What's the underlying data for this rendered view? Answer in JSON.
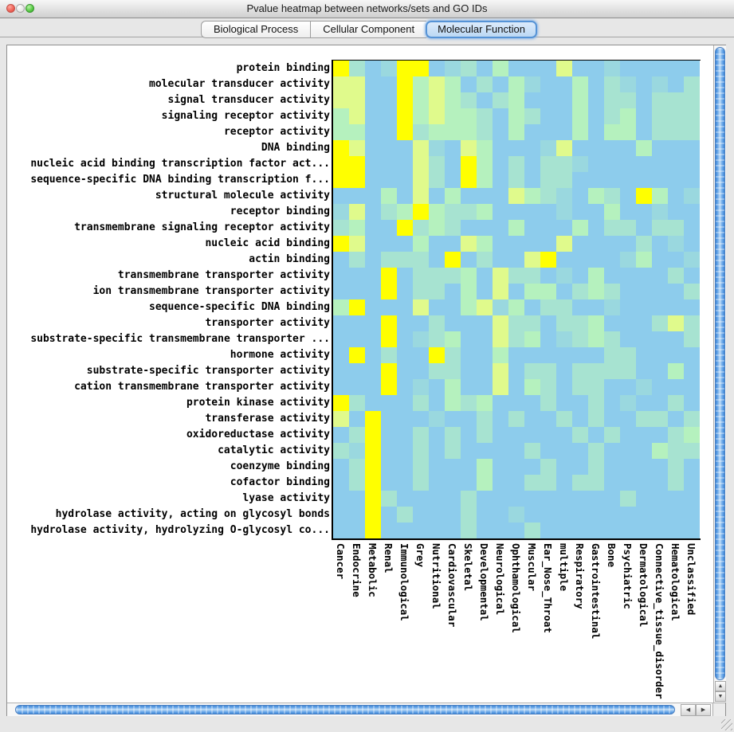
{
  "window": {
    "title": "Pvalue heatmap between networks/sets and GO IDs"
  },
  "tabs": [
    {
      "label": "Biological Process",
      "selected": false
    },
    {
      "label": "Cellular Component",
      "selected": false
    },
    {
      "label": "Molecular Function",
      "selected": true
    }
  ],
  "icons": {
    "scroll_up": "▲",
    "scroll_down": "▼",
    "scroll_left": "◀",
    "scroll_right": "▶"
  },
  "chart_data": {
    "type": "heatmap",
    "title": "Pvalue heatmap between networks/sets and GO IDs",
    "rows": [
      "protein binding",
      "molecular transducer activity",
      "signal transducer activity",
      "signaling receptor activity",
      "receptor activity",
      "DNA binding",
      "nucleic acid binding transcription factor act...",
      "sequence-specific DNA binding transcription f...",
      "structural molecule activity",
      "receptor binding",
      "transmembrane signaling receptor activity",
      "nucleic acid binding",
      "actin binding",
      "transmembrane transporter activity",
      "ion transmembrane transporter activity",
      "sequence-specific DNA binding",
      "transporter activity",
      "substrate-specific transmembrane transporter ...",
      "hormone activity",
      "substrate-specific transporter activity",
      "cation transmembrane transporter activity",
      "protein kinase activity",
      "transferase activity",
      "oxidoreductase activity",
      "catalytic activity",
      "coenzyme binding",
      "cofactor binding",
      "lyase activity",
      "hydrolase activity, acting on glycosyl bonds",
      "hydrolase activity, hydrolyzing O-glycosyl co..."
    ],
    "columns": [
      "Cancer",
      "Endocrine",
      "Metabolic",
      "Renal",
      "Immunological",
      "Grey",
      "Nutritional",
      "Cardiovascular",
      "Skeletal",
      "Developmental",
      "Neurological",
      "Ophthamological",
      "Muscular",
      "Ear_Nose_Throat",
      "multiple",
      "Respiratory",
      "Gastrointestinal",
      "Bone",
      "Psychiatric",
      "Dermatological",
      "Connective_tissue_disorder",
      "Hematological",
      "Unclassified"
    ],
    "palette": [
      "#8DCCEC",
      "#9AD8DF",
      "#A7E3D1",
      "#B5F1BE",
      "#E0FA8C",
      "#FFFF00"
    ],
    "palette_meaning": "significance level 0 (low, blue) to 5 (high, yellow)",
    "cells": [
      "52015501203000400100000",
      "44005343020310030210102",
      "44005343202300030220222",
      "34005343320320030230222",
      "33005233320300030330222",
      "54000410430001400003000",
      "55000420530202210000000",
      "55000420530202200000000",
      "00030403000432103205301",
      "14023532230000100300100",
      "23005232000300030220220",
      "54000300430000400002010",
      "02022205020045000013001",
      "00050222304220103000020",
      "00050220304033023200002",
      "35000400341302200100000",
      "00050020004220223000242",
      "00050123004230123200002",
      "05020052003000000220000",
      "00050022004022022220030",
      "00050103004032022001000",
      "52000203230002002010020",
      "40500010020200202002202",
      "02500202020000020200023",
      "21500202000020002000322",
      "02500200030002002000020",
      "02500200030022022000020",
      "00520000200000000020000",
      "00502000200100000000000",
      "00500000200020000000000"
    ]
  }
}
